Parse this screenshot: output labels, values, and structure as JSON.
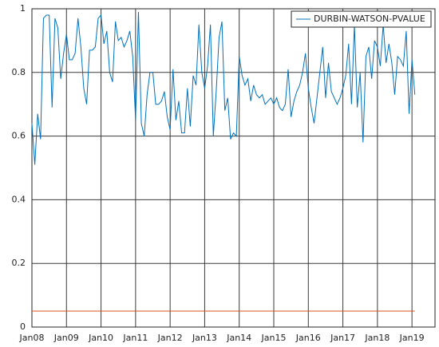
{
  "chart_data": {
    "type": "line",
    "x": [
      "2008-01",
      "2008-02",
      "2008-03",
      "2008-04",
      "2008-05",
      "2008-06",
      "2008-07",
      "2008-08",
      "2008-09",
      "2008-10",
      "2008-11",
      "2008-12",
      "2009-01",
      "2009-02",
      "2009-03",
      "2009-04",
      "2009-05",
      "2009-06",
      "2009-07",
      "2009-08",
      "2009-09",
      "2009-10",
      "2009-11",
      "2009-12",
      "2010-01",
      "2010-02",
      "2010-03",
      "2010-04",
      "2010-05",
      "2010-06",
      "2010-07",
      "2010-08",
      "2010-09",
      "2010-10",
      "2010-11",
      "2010-12",
      "2011-01",
      "2011-02",
      "2011-03",
      "2011-04",
      "2011-05",
      "2011-06",
      "2011-07",
      "2011-08",
      "2011-09",
      "2011-10",
      "2011-11",
      "2011-12",
      "2012-01",
      "2012-02",
      "2012-03",
      "2012-04",
      "2012-05",
      "2012-06",
      "2012-07",
      "2012-08",
      "2012-09",
      "2012-10",
      "2012-11",
      "2012-12",
      "2013-01",
      "2013-02",
      "2013-03",
      "2013-04",
      "2013-05",
      "2013-06",
      "2013-07",
      "2013-08",
      "2013-09",
      "2013-10",
      "2013-11",
      "2013-12",
      "2014-01",
      "2014-02",
      "2014-03",
      "2014-04",
      "2014-05",
      "2014-06",
      "2014-07",
      "2014-08",
      "2014-09",
      "2014-10",
      "2014-11",
      "2014-12",
      "2015-01",
      "2015-02",
      "2015-03",
      "2015-04",
      "2015-05",
      "2015-06",
      "2015-07",
      "2015-08",
      "2015-09",
      "2015-10",
      "2015-11",
      "2015-12",
      "2016-01",
      "2016-02",
      "2016-03",
      "2016-04",
      "2016-05",
      "2016-06",
      "2016-07",
      "2016-08",
      "2016-09",
      "2016-10",
      "2016-11",
      "2016-12",
      "2017-01",
      "2017-02",
      "2017-03",
      "2017-04",
      "2017-05",
      "2017-06",
      "2017-07",
      "2017-08",
      "2017-09",
      "2017-10",
      "2017-11",
      "2017-12",
      "2018-01",
      "2018-02",
      "2018-03",
      "2018-04",
      "2018-05",
      "2018-06",
      "2018-07",
      "2018-08",
      "2018-09",
      "2018-10",
      "2018-11",
      "2018-12",
      "2019-01",
      "2019-02"
    ],
    "series": [
      {
        "name": "DURBIN-WATSON-PVALUE",
        "color": "#0072bd",
        "values": [
          0.64,
          0.51,
          0.67,
          0.59,
          0.97,
          0.98,
          0.98,
          0.69,
          0.97,
          0.94,
          0.78,
          0.86,
          0.92,
          0.84,
          0.84,
          0.86,
          0.97,
          0.88,
          0.75,
          0.7,
          0.87,
          0.87,
          0.88,
          0.97,
          0.98,
          0.89,
          0.93,
          0.8,
          0.77,
          0.96,
          0.9,
          0.91,
          0.88,
          0.9,
          0.93,
          0.85,
          0.65,
          0.99,
          0.64,
          0.6,
          0.73,
          0.8,
          0.8,
          0.7,
          0.7,
          0.71,
          0.74,
          0.66,
          0.62,
          0.81,
          0.65,
          0.71,
          0.61,
          0.61,
          0.75,
          0.63,
          0.79,
          0.76,
          0.95,
          0.8,
          0.75,
          0.82,
          0.95,
          0.6,
          0.74,
          0.91,
          0.96,
          0.68,
          0.72,
          0.59,
          0.61,
          0.6,
          0.85,
          0.79,
          0.76,
          0.78,
          0.71,
          0.76,
          0.73,
          0.72,
          0.73,
          0.7,
          0.71,
          0.72,
          0.7,
          0.72,
          0.69,
          0.68,
          0.7,
          0.81,
          0.66,
          0.71,
          0.74,
          0.76,
          0.8,
          0.86,
          0.75,
          0.69,
          0.64,
          0.72,
          0.8,
          0.88,
          0.72,
          0.83,
          0.74,
          0.72,
          0.7,
          0.72,
          0.75,
          0.79,
          0.89,
          0.7,
          0.95,
          0.69,
          0.8,
          0.58,
          0.85,
          0.88,
          0.78,
          0.9,
          0.88,
          0.82,
          0.95,
          0.83,
          0.89,
          0.83,
          0.73,
          0.85,
          0.84,
          0.82,
          0.93,
          0.67,
          0.84,
          0.73
        ]
      }
    ],
    "reference_lines": [
      {
        "value": 0.05,
        "color": "#d95319"
      }
    ],
    "xlim": [
      "2008-01",
      "2019-09"
    ],
    "xticks": [
      {
        "value": "2008-01",
        "label": "Jan08"
      },
      {
        "value": "2009-01",
        "label": "Jan09"
      },
      {
        "value": "2010-01",
        "label": "Jan10"
      },
      {
        "value": "2011-01",
        "label": "Jan11"
      },
      {
        "value": "2012-01",
        "label": "Jan12"
      },
      {
        "value": "2013-01",
        "label": "Jan13"
      },
      {
        "value": "2014-01",
        "label": "Jan14"
      },
      {
        "value": "2015-01",
        "label": "Jan15"
      },
      {
        "value": "2016-01",
        "label": "Jan16"
      },
      {
        "value": "2017-01",
        "label": "Jan17"
      },
      {
        "value": "2018-01",
        "label": "Jan18"
      },
      {
        "value": "2019-01",
        "label": "Jan19"
      }
    ],
    "ylim": [
      0,
      1
    ],
    "yticks": [
      0,
      0.2,
      0.4,
      0.6,
      0.8,
      1
    ],
    "grid": true,
    "legend": "top-right"
  }
}
